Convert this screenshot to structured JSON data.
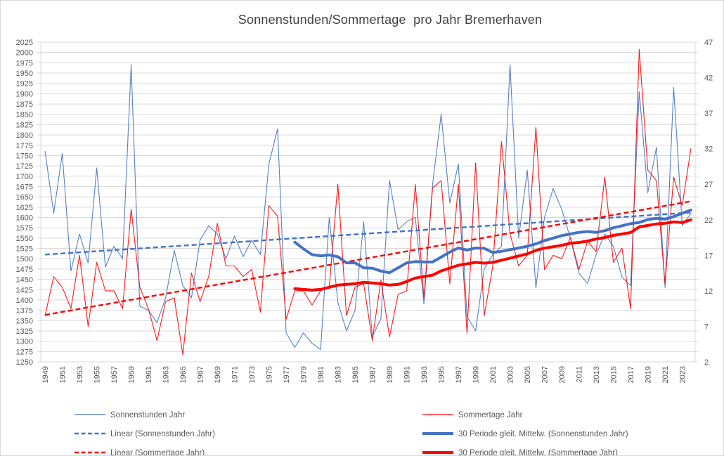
{
  "title": "Sonnenstunden/Sommertage  pro Jahr Bremerhaven",
  "chart_data": {
    "type": "line",
    "title": "Sonnenstunden/Sommertage  pro Jahr Bremerhaven",
    "x_start_year": 1949,
    "x_end_year": 2024,
    "x_tick_labels": [
      1949,
      1951,
      1953,
      1955,
      1957,
      1959,
      1961,
      1963,
      1965,
      1967,
      1969,
      1971,
      1973,
      1975,
      1977,
      1979,
      1981,
      1983,
      1985,
      1987,
      1989,
      1991,
      1993,
      1995,
      1997,
      1999,
      2001,
      2003,
      2005,
      2007,
      2009,
      2011,
      2013,
      2015,
      2017,
      2019,
      2021,
      2023
    ],
    "left_axis": {
      "min": 1250,
      "max": 2025,
      "step": 25,
      "ticks": [
        2025,
        2000,
        1975,
        1950,
        1925,
        1900,
        1875,
        1850,
        1825,
        1800,
        1775,
        1750,
        1725,
        1700,
        1675,
        1650,
        1625,
        1600,
        1575,
        1550,
        1525,
        1500,
        1475,
        1450,
        1425,
        1400,
        1375,
        1350,
        1325,
        1300,
        1275,
        1250
      ]
    },
    "right_axis": {
      "min": 2,
      "max": 47,
      "step": 5,
      "ticks": [
        47,
        42,
        37,
        32,
        27,
        22,
        17,
        12,
        7,
        2
      ]
    },
    "grid_color": "#D9D9D9",
    "axis_text_color": "#595959",
    "series": [
      {
        "name": "Sonnenstunden Jahr",
        "axis": "left",
        "style": "thin",
        "color": "#4472C4",
        "start_year": 1949,
        "values": [
          1760,
          1610,
          1755,
          1470,
          1560,
          1490,
          1720,
          1480,
          1530,
          1500,
          1970,
          1385,
          1375,
          1345,
          1405,
          1520,
          1435,
          1405,
          1545,
          1580,
          1560,
          1500,
          1555,
          1505,
          1545,
          1510,
          1730,
          1815,
          1320,
          1285,
          1320,
          1295,
          1280,
          1600,
          1395,
          1325,
          1375,
          1590,
          1310,
          1355,
          1690,
          1570,
          1590,
          1600,
          1390,
          1680,
          1850,
          1635,
          1730,
          1360,
          1325,
          1475,
          1510,
          1530,
          1970,
          1550,
          1715,
          1430,
          1600,
          1670,
          1620,
          1550,
          1465,
          1440,
          1510,
          1560,
          1530,
          1455,
          1435,
          1905,
          1660,
          1770,
          1430,
          1915,
          1580,
          1610
        ]
      },
      {
        "name": "Sommertage Jahr",
        "axis": "right",
        "style": "thin",
        "color": "#FF0000",
        "start_year": 1949,
        "values": [
          8.5,
          14,
          12.5,
          9.5,
          17,
          7,
          16,
          12,
          12,
          9.5,
          23.5,
          12.5,
          9.5,
          5,
          10.5,
          11,
          3,
          14.5,
          10.5,
          14,
          21.5,
          15.5,
          15.5,
          14,
          15,
          9,
          24,
          22.5,
          8,
          12,
          12,
          10,
          12,
          12.5,
          27,
          8.5,
          12.5,
          13,
          5,
          13.5,
          5.5,
          11.5,
          12,
          27,
          11,
          26.5,
          27.5,
          13,
          27,
          6,
          30,
          8.5,
          15.5,
          33,
          20,
          15.5,
          17,
          35,
          15,
          17,
          16.5,
          19.5,
          15,
          19,
          17.5,
          28,
          16,
          18,
          9.5,
          46,
          29,
          27.5,
          13,
          28,
          24,
          32
        ]
      },
      {
        "name": "Linear (Sonnenstunden Jahr)",
        "axis": "left",
        "style": "dashed",
        "color": "#4472C4",
        "trend": [
          1510,
          1612
        ]
      },
      {
        "name": "Linear (Sommertage Jahr)",
        "axis": "right",
        "style": "dashed",
        "color": "#FF0000",
        "trend": [
          8.6,
          24.6
        ]
      },
      {
        "name": "30 Periode gleit. Mittelw. (Sonnenstunden Jahr)",
        "axis": "left",
        "style": "thick",
        "color": "#4472C4",
        "start_year": 1978,
        "values": [
          1540,
          1524,
          1510,
          1507,
          1509,
          1505,
          1490,
          1490,
          1478,
          1477,
          1470,
          1466,
          1478,
          1490,
          1493,
          1492,
          1492,
          1504,
          1516,
          1526,
          1521,
          1526,
          1525,
          1515,
          1518,
          1522,
          1526,
          1530,
          1536,
          1544,
          1550,
          1556,
          1560,
          1564,
          1566,
          1564,
          1568,
          1575,
          1580,
          1585,
          1588,
          1595,
          1598,
          1596,
          1602,
          1610,
          1618
        ]
      },
      {
        "name": "30 Periode gleit. Mittelw. (Sommertage Jahr)",
        "axis": "right",
        "style": "thick",
        "color": "#FF0000",
        "start_year": 1978,
        "values": [
          12.3,
          12.2,
          12.1,
          12.2,
          12.5,
          12.8,
          12.9,
          13.0,
          13.2,
          13.1,
          13.0,
          12.8,
          12.9,
          13.3,
          13.8,
          14.0,
          14.2,
          14.8,
          15.2,
          15.6,
          15.8,
          16.0,
          15.9,
          16.0,
          16.3,
          16.6,
          16.9,
          17.2,
          17.7,
          18.0,
          18.2,
          18.4,
          18.7,
          18.8,
          19.0,
          19.3,
          19.5,
          19.8,
          20.0,
          20.2,
          21.0,
          21.2,
          21.4,
          21.5,
          21.7,
          21.6,
          22.0
        ]
      }
    ],
    "legend": {
      "columns": [
        {
          "items": [
            {
              "label": "Sonnenstunden Jahr",
              "style": "thin",
              "color": "#4472C4"
            },
            {
              "label": "Linear (Sonnenstunden Jahr)",
              "style": "dashed",
              "color": "#4472C4"
            },
            {
              "label": "Linear (Sommertage Jahr)",
              "style": "dashed",
              "color": "#FF0000"
            }
          ]
        },
        {
          "items": [
            {
              "label": "Sommertage Jahr",
              "style": "thin",
              "color": "#FF0000"
            },
            {
              "label": "30 Periode gleit. Mittelw. (Sonnenstunden Jahr)",
              "style": "thick",
              "color": "#4472C4"
            },
            {
              "label": "30 Periode gleit. Mittelw. (Sommertage Jahr)",
              "style": "thick",
              "color": "#FF0000"
            }
          ]
        }
      ]
    }
  }
}
